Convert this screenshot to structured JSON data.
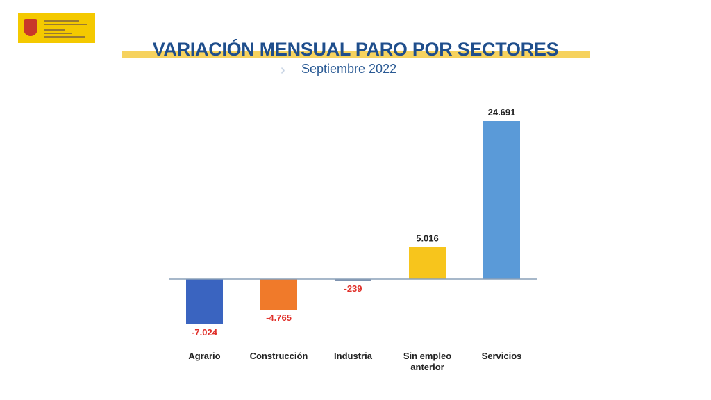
{
  "header": {
    "title": "VARIACIÓN MENSUAL PARO POR SECTORES",
    "subtitle": "Septiembre 2022"
  },
  "chart_data": {
    "type": "bar",
    "title": "VARIACIÓN MENSUAL PARO POR SECTORES",
    "subtitle": "Septiembre 2022",
    "categories": [
      "Agrario",
      "Construcción",
      "Industria",
      "Sin empleo anterior",
      "Servicios"
    ],
    "values": [
      -7024,
      -4765,
      -239,
      5016,
      24691
    ],
    "data_labels": [
      "-7.024",
      "-4.765",
      "-239",
      "5.016",
      "24.691"
    ],
    "colors": [
      "#3a64c0",
      "#f07a2a",
      "#7f93b0",
      "#f7c51c",
      "#5a9ad8"
    ],
    "negative_label_color": "#e0302a",
    "positive_label_color": "#222222",
    "grid": false,
    "legend": "none"
  }
}
